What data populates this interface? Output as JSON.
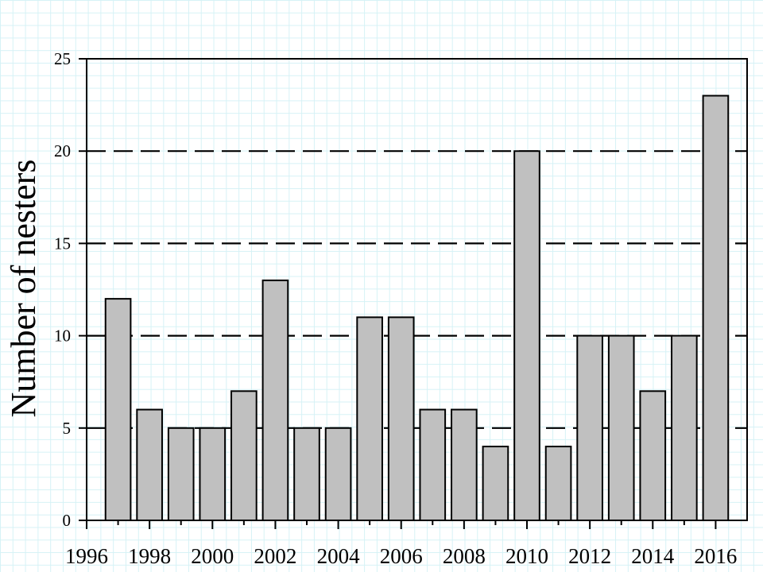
{
  "chart_data": {
    "type": "bar",
    "title": "",
    "xlabel": "",
    "ylabel": "Number of nesters",
    "x": [
      1997,
      1998,
      1999,
      2000,
      2001,
      2002,
      2003,
      2004,
      2005,
      2006,
      2007,
      2008,
      2009,
      2010,
      2011,
      2012,
      2013,
      2014,
      2015,
      2016
    ],
    "values": [
      12,
      6,
      5,
      5,
      7,
      13,
      5,
      5,
      11,
      11,
      6,
      6,
      4,
      20,
      4,
      10,
      10,
      7,
      10,
      23
    ],
    "xlim": [
      1996,
      2017
    ],
    "ylim": [
      0,
      25
    ],
    "xticks": [
      1996,
      1998,
      2000,
      2002,
      2004,
      2006,
      2008,
      2010,
      2012,
      2014,
      2016
    ],
    "xtick_labels": [
      "1996",
      "1998",
      "2000",
      "2002",
      "2004",
      "2006",
      "2008",
      "2010",
      "2012",
      "2014",
      "2016"
    ],
    "yticks": [
      0,
      5,
      10,
      15,
      20,
      25
    ],
    "ytick_labels": [
      "0",
      "5",
      "10",
      "15",
      "20",
      "25"
    ],
    "dashed_gridlines_y": [
      5,
      10,
      15,
      20
    ],
    "bar_color": "#c0c0c0",
    "bar_edge_color": "#000000",
    "legend": false
  }
}
